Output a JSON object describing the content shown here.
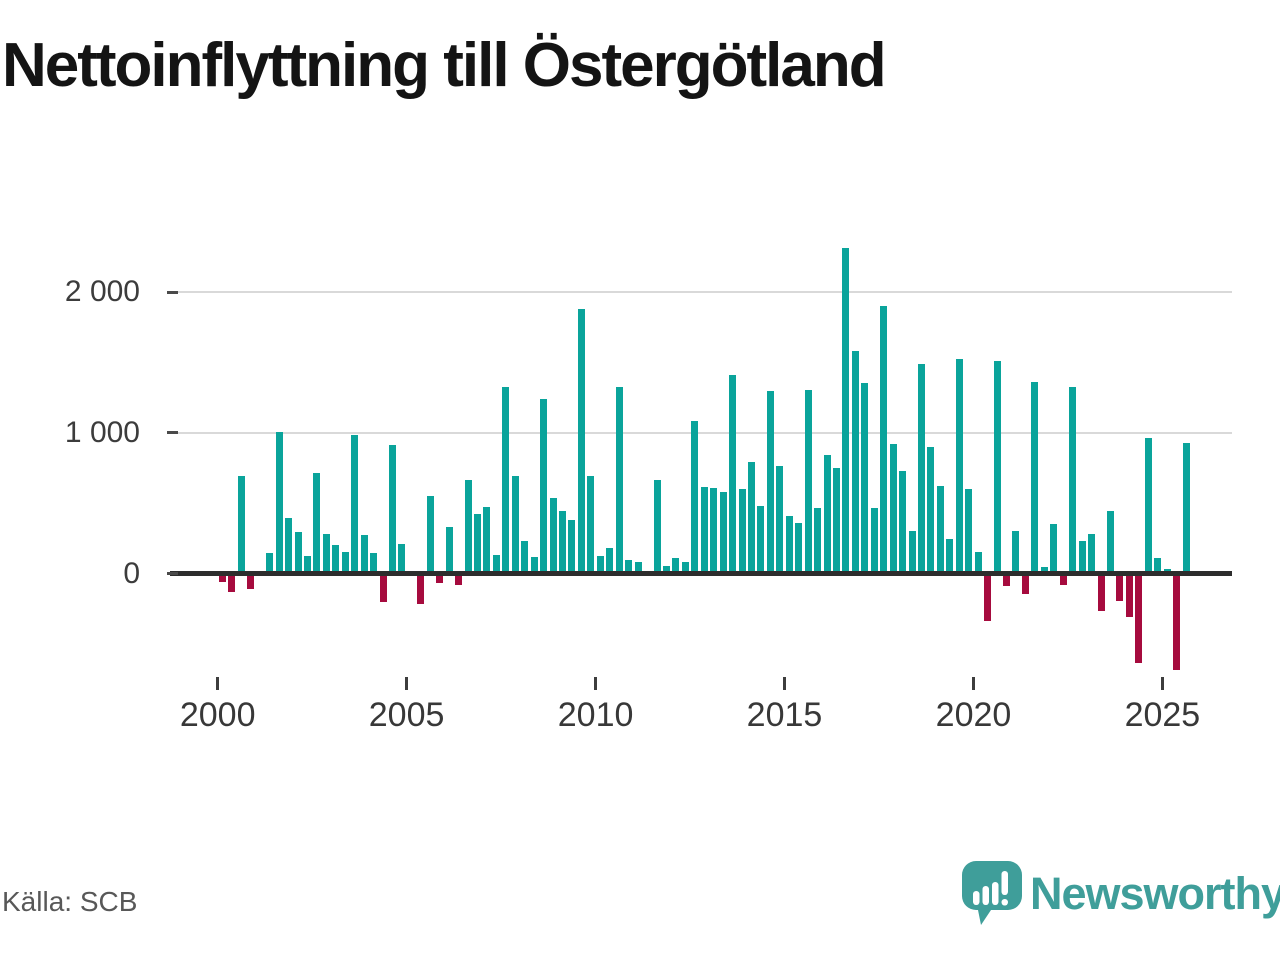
{
  "chart_data": {
    "type": "bar",
    "title": "Nettoinflyttning till Östergötland",
    "source": "Källa: SCB",
    "frequency": "quarterly",
    "start": "2000Q1",
    "end": "2025Q3",
    "positive_color": "#0aa49b",
    "negative_color": "#a60b3e",
    "grid": true,
    "ylim": [
      -700,
      2350
    ],
    "y_ticks": [
      {
        "label": "0",
        "value": 0
      },
      {
        "label": "1 000",
        "value": 1000
      },
      {
        "label": "2 000",
        "value": 2000
      }
    ],
    "x_tick_labels": [
      "2000",
      "2005",
      "2010",
      "2015",
      "2020",
      "2025"
    ],
    "years": [
      {
        "year": 2000,
        "quarters": [
          -45,
          -110,
          675,
          -95
        ]
      },
      {
        "year": 2001,
        "quarters": [
          0,
          125,
          985,
          375
        ]
      },
      {
        "year": 2002,
        "quarters": [
          275,
          110,
          695,
          265
        ]
      },
      {
        "year": 2003,
        "quarters": [
          185,
          135,
          970,
          255
        ]
      },
      {
        "year": 2004,
        "quarters": [
          130,
          -185,
          895,
          190
        ]
      },
      {
        "year": 2005,
        "quarters": [
          0,
          -200,
          530,
          -50
        ]
      },
      {
        "year": 2006,
        "quarters": [
          315,
          -65,
          645,
          405
        ]
      },
      {
        "year": 2007,
        "quarters": [
          455,
          115,
          1310,
          675
        ]
      },
      {
        "year": 2008,
        "quarters": [
          215,
          100,
          1220,
          520
        ]
      },
      {
        "year": 2009,
        "quarters": [
          430,
          365,
          1865,
          675
        ]
      },
      {
        "year": 2010,
        "quarters": [
          105,
          165,
          1310,
          75
        ]
      },
      {
        "year": 2011,
        "quarters": [
          65,
          0,
          645,
          35
        ]
      },
      {
        "year": 2012,
        "quarters": [
          90,
          65,
          1070,
          600
        ]
      },
      {
        "year": 2013,
        "quarters": [
          590,
          565,
          1395,
          580
        ]
      },
      {
        "year": 2014,
        "quarters": [
          775,
          460,
          1280,
          750
        ]
      },
      {
        "year": 2015,
        "quarters": [
          390,
          340,
          1290,
          450
        ]
      },
      {
        "year": 2016,
        "quarters": [
          825,
          730,
          2295,
          1565
        ]
      },
      {
        "year": 2017,
        "quarters": [
          1335,
          445,
          1885,
          900
        ]
      },
      {
        "year": 2018,
        "quarters": [
          710,
          285,
          1475,
          885
        ]
      },
      {
        "year": 2019,
        "quarters": [
          605,
          225,
          1510,
          580
        ]
      },
      {
        "year": 2020,
        "quarters": [
          135,
          -320,
          1490,
          -70
        ]
      },
      {
        "year": 2021,
        "quarters": [
          285,
          -125,
          1345,
          30
        ]
      },
      {
        "year": 2022,
        "quarters": [
          335,
          -65,
          1305,
          215
        ]
      },
      {
        "year": 2023,
        "quarters": [
          260,
          -245,
          430,
          -175
        ]
      },
      {
        "year": 2024,
        "quarters": [
          -290,
          -620,
          945,
          95
        ]
      },
      {
        "year": 2025,
        "quarters": [
          15,
          -665,
          910
        ]
      }
    ]
  },
  "branding": {
    "logo_text": "Newsworthy",
    "logo_color": "#3f9e9a"
  }
}
